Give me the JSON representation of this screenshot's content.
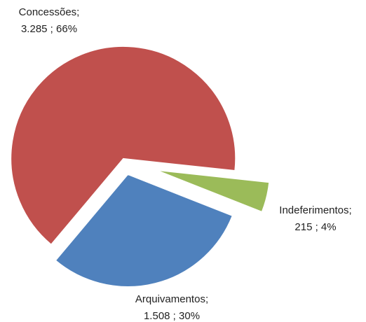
{
  "chart_data": {
    "type": "pie",
    "categories": [
      "Concessões;",
      "Indeferimentos;",
      "Arquivamentos;"
    ],
    "values": [
      3285,
      215,
      1508
    ],
    "value_labels": [
      "3.285 ; 66%",
      "215 ; 4%",
      "1.508 ; 30%"
    ],
    "colors": [
      "#c0504d",
      "#9bbb59",
      "#4f81bd"
    ]
  }
}
